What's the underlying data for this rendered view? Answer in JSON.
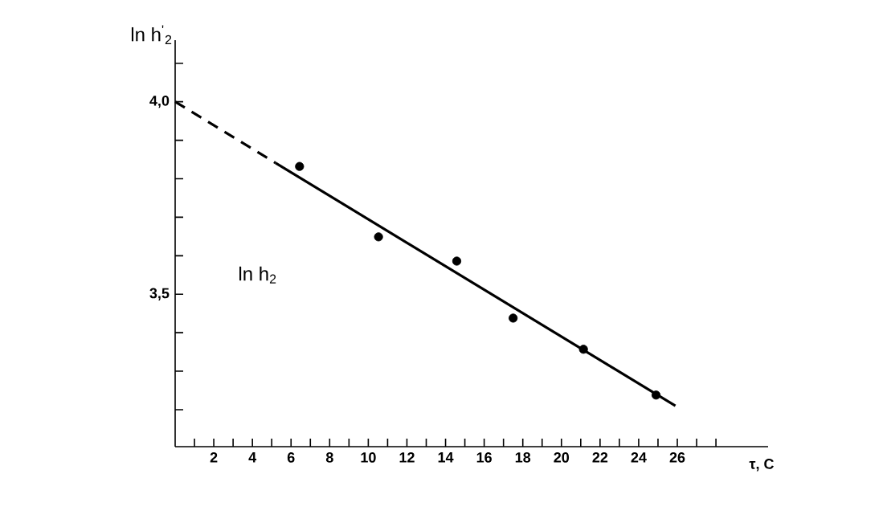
{
  "chart_data": {
    "type": "scatter",
    "xlabel": "τ, C",
    "ylabel": "ln h$^{'}$$_{2}$",
    "xlim": [
      0,
      30.7
    ],
    "ylim": [
      3.104,
      4.16
    ],
    "xticks": [
      {
        "value": 1,
        "label": null
      },
      2,
      {
        "value": 3,
        "label": null
      },
      4,
      {
        "value": 5,
        "label": null
      },
      6,
      {
        "value": 7,
        "label": null
      },
      8,
      {
        "value": 9,
        "label": null
      },
      10,
      {
        "value": 11,
        "label": null
      },
      12,
      {
        "value": 13,
        "label": null
      },
      14,
      {
        "value": 15,
        "label": null
      },
      16,
      {
        "value": 17,
        "label": null
      },
      18,
      {
        "value": 19,
        "label": null
      },
      20,
      {
        "value": 21,
        "label": null
      },
      22,
      {
        "value": 23,
        "label": null
      },
      24,
      {
        "value": 25,
        "label": null
      },
      26,
      {
        "value": 27,
        "label": null
      },
      {
        "value": 28,
        "label": null
      }
    ],
    "yticks": [
      {
        "value": 3.2,
        "label": null
      },
      {
        "value": 3.3,
        "label": null
      },
      {
        "value": 3.4,
        "label": null
      },
      {
        "value": 3.5,
        "label": "3,5"
      },
      {
        "value": 3.6,
        "label": null
      },
      {
        "value": 3.7,
        "label": null
      },
      {
        "value": 3.8,
        "label": null
      },
      {
        "value": 3.9,
        "label": null
      },
      {
        "value": 4.0,
        "label": "4,0"
      },
      {
        "value": 4.1,
        "label": null
      }
    ],
    "series": [
      {
        "color": "#000000",
        "marker": "circle",
        "x": [
          6.44,
          10.53,
          14.58,
          17.5,
          21.14,
          24.9
        ],
        "values": [
          3.832,
          3.649,
          3.586,
          3.438,
          3.357,
          3.238
        ]
      },
      {
        "type": "line",
        "color": "#000000",
        "marker": "none",
        "line_style": "dashed",
        "x": [
          0,
          5.2
        ],
        "values": [
          4.0,
          3.841
        ]
      },
      {
        "type": "line",
        "color": "#000000",
        "marker": "none",
        "line_style": "solid",
        "x": [
          5.2,
          25.9
        ],
        "values": [
          3.841,
          3.21
        ]
      }
    ],
    "annotations": [
      "ln h$_{2}$"
    ]
  }
}
